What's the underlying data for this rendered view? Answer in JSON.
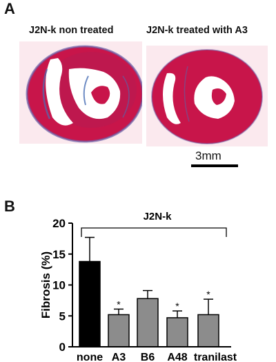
{
  "panel_a": {
    "letter": "A",
    "left_caption": "J2N-k non treated",
    "right_caption": "J2N-k treated with A3",
    "scale_label": "3mm"
  },
  "panel_b": {
    "letter": "B"
  },
  "colors": {
    "tissue_red": "#c8154a",
    "fibrosis_blue": "#4a6fb5",
    "slide_bg": "#fbe9ee",
    "bar_none": "#000000",
    "bar_treated": "#8c8c8c"
  },
  "chart_data": {
    "type": "bar",
    "title": "J2N-k",
    "ylabel": "Fibrosis (%)",
    "xlabel": "",
    "categories": [
      "none",
      "A3",
      "B6",
      "A48",
      "tranilast"
    ],
    "values": [
      13.8,
      5.2,
      7.8,
      4.7,
      5.2
    ],
    "errors": [
      3.9,
      0.9,
      1.3,
      1.1,
      2.5
    ],
    "bar_colors": [
      "#000000",
      "#8c8c8c",
      "#8c8c8c",
      "#8c8c8c",
      "#8c8c8c"
    ],
    "significance": [
      "",
      "*",
      "",
      "*",
      "*"
    ],
    "ylim": [
      0,
      20
    ],
    "yticks": [
      0,
      5,
      10,
      15,
      20
    ],
    "bracket": true,
    "grid": false
  }
}
